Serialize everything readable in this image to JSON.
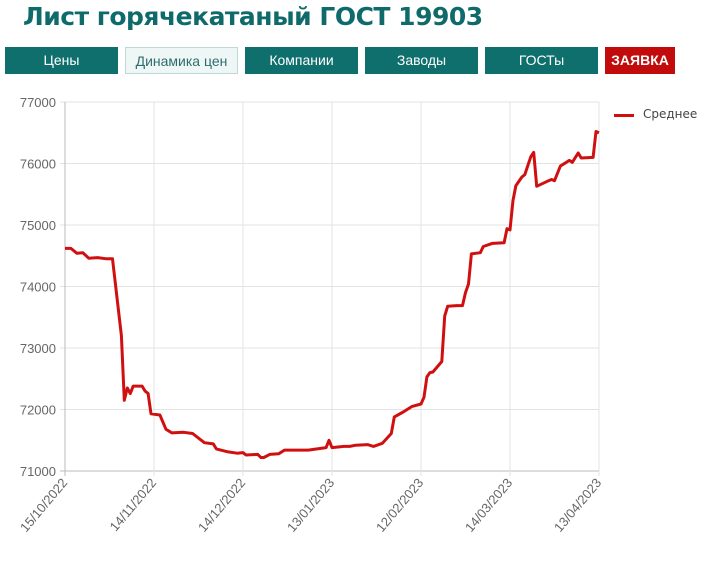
{
  "page": {
    "title": "Лист горячекатаный ГОСТ 19903"
  },
  "nav": {
    "items": [
      {
        "label": "Цены",
        "active": false
      },
      {
        "label": "Динамика цен",
        "active": true
      },
      {
        "label": "Компании",
        "active": false
      },
      {
        "label": "Заводы",
        "active": false
      },
      {
        "label": "ГОСТы",
        "active": false
      },
      {
        "label": "ЗАЯВКА",
        "active": false
      }
    ]
  },
  "legend": {
    "label": "Среднее",
    "color": "#d01010"
  },
  "colors": {
    "brand": "#0e6f6d",
    "order": "#c20b0b",
    "line": "#d01010",
    "grid": "#e3e3e3"
  },
  "chart_data": {
    "type": "line",
    "title": "Лист горячекатаный ГОСТ 19903",
    "xlabel": "",
    "ylabel": "",
    "ylim": [
      71000,
      77000
    ],
    "y_ticks": [
      "77000",
      "76000",
      "75000",
      "74000",
      "73000",
      "72000",
      "71000"
    ],
    "x_ticks": [
      "15/10/2022",
      "14/11/2022",
      "14/12/2022",
      "13/01/2023",
      "12/02/2023",
      "14/03/2023",
      "13/04/2023"
    ],
    "grid": true,
    "legend_position": "right",
    "series": [
      {
        "name": "Среднее",
        "color": "#d01010",
        "points": [
          [
            "15/10/2022",
            74620
          ],
          [
            "17/10/2022",
            74620
          ],
          [
            "19/10/2022",
            74540
          ],
          [
            "21/10/2022",
            74550
          ],
          [
            "23/10/2022",
            74460
          ],
          [
            "26/10/2022",
            74470
          ],
          [
            "29/10/2022",
            74450
          ],
          [
            "31/10/2022",
            74450
          ],
          [
            "03/11/2022",
            73200
          ],
          [
            "04/11/2022",
            72150
          ],
          [
            "05/11/2022",
            72350
          ],
          [
            "06/11/2022",
            72260
          ],
          [
            "07/11/2022",
            72380
          ],
          [
            "10/11/2022",
            72380
          ],
          [
            "11/11/2022",
            72300
          ],
          [
            "12/11/2022",
            72260
          ],
          [
            "13/11/2022",
            71930
          ],
          [
            "16/11/2022",
            71910
          ],
          [
            "18/11/2022",
            71680
          ],
          [
            "20/11/2022",
            71620
          ],
          [
            "24/11/2022",
            71630
          ],
          [
            "27/11/2022",
            71610
          ],
          [
            "01/12/2022",
            71460
          ],
          [
            "04/12/2022",
            71440
          ],
          [
            "05/12/2022",
            71360
          ],
          [
            "09/12/2022",
            71310
          ],
          [
            "12/12/2022",
            71290
          ],
          [
            "14/12/2022",
            71300
          ],
          [
            "15/12/2022",
            71260
          ],
          [
            "19/12/2022",
            71270
          ],
          [
            "20/12/2022",
            71220
          ],
          [
            "21/12/2022",
            71220
          ],
          [
            "23/12/2022",
            71270
          ],
          [
            "26/12/2022",
            71280
          ],
          [
            "28/12/2022",
            71340
          ],
          [
            "05/01/2023",
            71340
          ],
          [
            "11/01/2023",
            71380
          ],
          [
            "12/01/2023",
            71500
          ],
          [
            "13/01/2023",
            71380
          ],
          [
            "17/01/2023",
            71400
          ],
          [
            "19/01/2023",
            71400
          ],
          [
            "21/01/2023",
            71420
          ],
          [
            "25/01/2023",
            71430
          ],
          [
            "27/01/2023",
            71400
          ],
          [
            "30/01/2023",
            71450
          ],
          [
            "02/02/2023",
            71610
          ],
          [
            "03/02/2023",
            71880
          ],
          [
            "06/02/2023",
            71960
          ],
          [
            "09/02/2023",
            72050
          ],
          [
            "12/02/2023",
            72090
          ],
          [
            "13/02/2023",
            72200
          ],
          [
            "14/02/2023",
            72530
          ],
          [
            "15/02/2023",
            72600
          ],
          [
            "16/02/2023",
            72610
          ],
          [
            "19/02/2023",
            72780
          ],
          [
            "20/02/2023",
            73520
          ],
          [
            "21/02/2023",
            73680
          ],
          [
            "24/02/2023",
            73690
          ],
          [
            "26/02/2023",
            73690
          ],
          [
            "27/02/2023",
            73900
          ],
          [
            "28/02/2023",
            74040
          ],
          [
            "01/03/2023",
            74530
          ],
          [
            "04/03/2023",
            74550
          ],
          [
            "05/03/2023",
            74650
          ],
          [
            "08/03/2023",
            74700
          ],
          [
            "12/03/2023",
            74710
          ],
          [
            "13/03/2023",
            74940
          ],
          [
            "14/03/2023",
            74920
          ],
          [
            "15/03/2023",
            75400
          ],
          [
            "16/03/2023",
            75640
          ],
          [
            "18/03/2023",
            75780
          ],
          [
            "19/03/2023",
            75820
          ],
          [
            "21/03/2023",
            76110
          ],
          [
            "22/03/2023",
            76180
          ],
          [
            "23/03/2023",
            75630
          ],
          [
            "27/03/2023",
            75720
          ],
          [
            "28/03/2023",
            75740
          ],
          [
            "29/03/2023",
            75720
          ],
          [
            "31/03/2023",
            75960
          ],
          [
            "02/04/2023",
            76020
          ],
          [
            "03/04/2023",
            76050
          ],
          [
            "04/04/2023",
            76020
          ],
          [
            "06/04/2023",
            76170
          ],
          [
            "07/04/2023",
            76090
          ],
          [
            "11/04/2023",
            76100
          ],
          [
            "12/04/2023",
            76520
          ],
          [
            "13/04/2023",
            76500
          ]
        ]
      }
    ]
  }
}
